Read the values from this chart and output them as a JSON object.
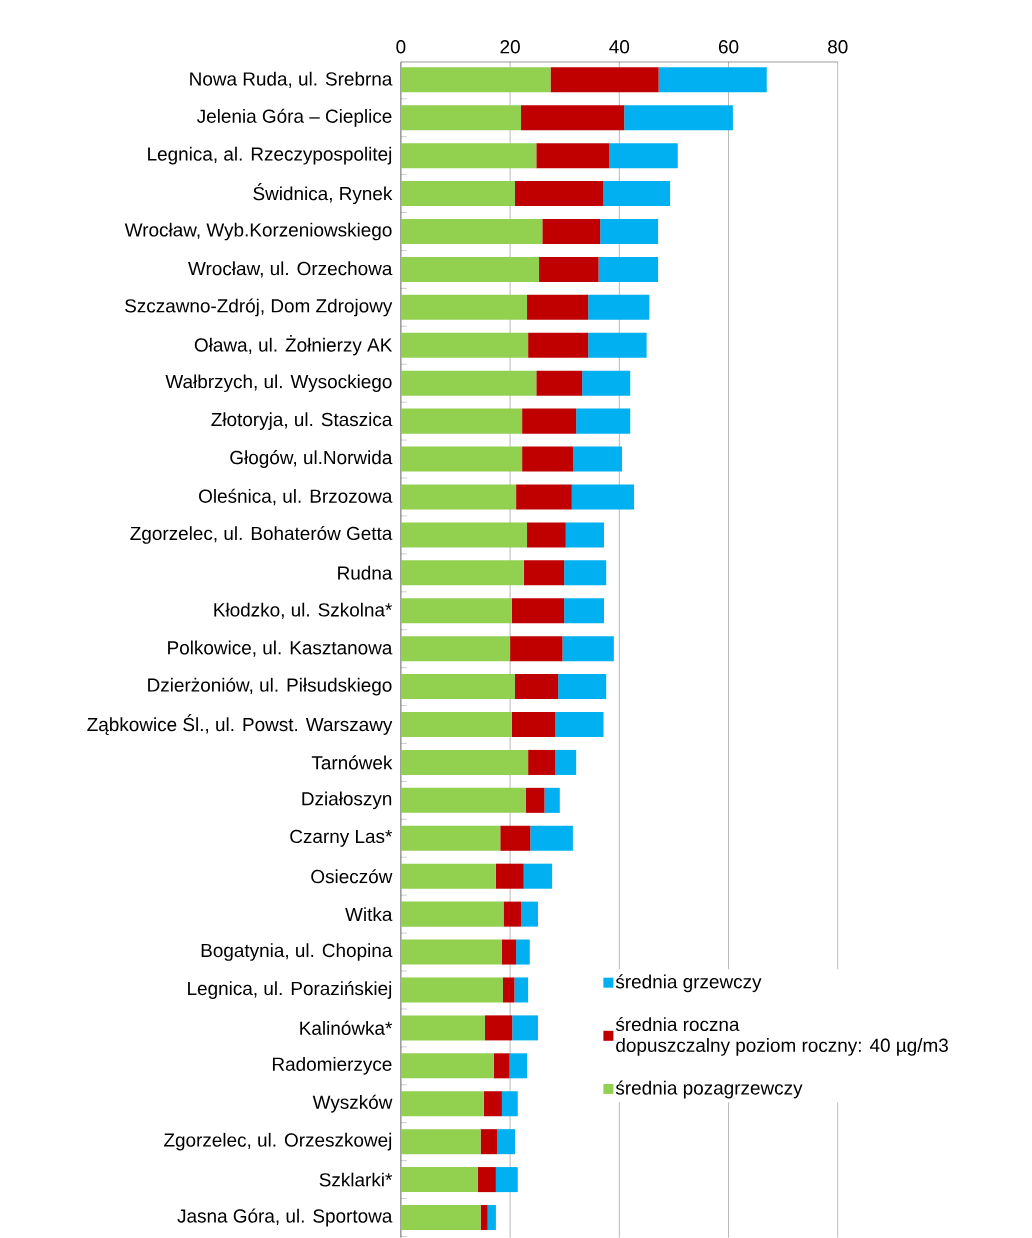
{
  "chart_data": {
    "type": "bar",
    "orientation": "horizontal",
    "stacked": true,
    "grid": "x",
    "legend": "bottom right",
    "categories": [
      "Nowa Ruda, ul. Srebrna",
      "Jelenia Góra – Cieplice",
      "Legnica, al. Rzeczypospolitej",
      "Świdnica, Rynek",
      "Wrocław, Wyb.Korzeniowskiego",
      "Wrocław, ul. Orzechowa",
      "Szczawno-Zdrój, Dom Zdrojowy",
      "Oława, ul. Żołnierzy AK",
      "Wałbrzych, ul. Wysockiego",
      "Złotoryja, ul. Staszica",
      "Głogów, ul.Norwida",
      "Oleśnica, ul. Brzozowa",
      "Zgorzelec, ul. Bohaterów Getta",
      "Rudna",
      "Kłodzko, ul. Szkolna*",
      "Polkowice, ul. Kasztanowa",
      "Dzierżoniów, ul. Piłsudskiego",
      "Ząbkowice Śl., ul. Powst. Warszawy",
      "Tarnówek",
      "Działoszyn",
      "Czarny Las*",
      "Osieczów",
      "Witka",
      "Bogatynia, ul. Chopina",
      "Legnica, ul. Porazińskiej",
      "Kalinówka*",
      "Radomierzyce",
      "Wyszków",
      "Zgorzelec, ul. Orzeszkowej",
      "Szklarki*",
      "Jasna Góra, ul. Sportowa"
    ],
    "series": [
      {
        "name": "średnia  pozagrzewczy",
        "color": "#92d050",
        "values": [
          27.4,
          22.0,
          24.8,
          20.9,
          25.9,
          25.3,
          23.1,
          23.3,
          24.8,
          22.2,
          22.2,
          21.1,
          23.1,
          22.5,
          20.3,
          20.0,
          20.9,
          20.3,
          23.3,
          22.9,
          18.2,
          17.4,
          18.8,
          18.5,
          18.7,
          15.4,
          17.0,
          15.2,
          14.6,
          14.1,
          14.6
        ]
      },
      {
        "name": "średnia roczna",
        "color": "#c00000",
        "values": [
          19.8,
          18.9,
          13.4,
          16.2,
          10.6,
          10.9,
          11.2,
          11.0,
          8.4,
          9.9,
          9.4,
          10.2,
          7.1,
          7.4,
          9.6,
          9.6,
          7.9,
          8.0,
          5.0,
          3.4,
          5.5,
          5.1,
          3.2,
          2.6,
          2.1,
          5.0,
          2.9,
          3.3,
          3.0,
          3.3,
          1.3
        ]
      },
      {
        "name": "średnia  grzewczy",
        "color": "#00b0f0",
        "values": [
          19.8,
          19.9,
          12.5,
          12.2,
          10.6,
          10.9,
          11.2,
          10.7,
          8.8,
          9.9,
          8.9,
          11.4,
          7.0,
          7.7,
          7.3,
          9.4,
          8.8,
          8.8,
          3.8,
          2.8,
          7.8,
          5.2,
          3.1,
          2.5,
          2.5,
          4.7,
          3.2,
          2.9,
          3.3,
          4.0,
          1.5
        ]
      }
    ],
    "annotations": [
      "dopuszczalny poziom roczny: 40 µg/m3"
    ],
    "xlim": [
      0,
      80
    ],
    "xticks": [
      0,
      20,
      40,
      60,
      80
    ]
  }
}
